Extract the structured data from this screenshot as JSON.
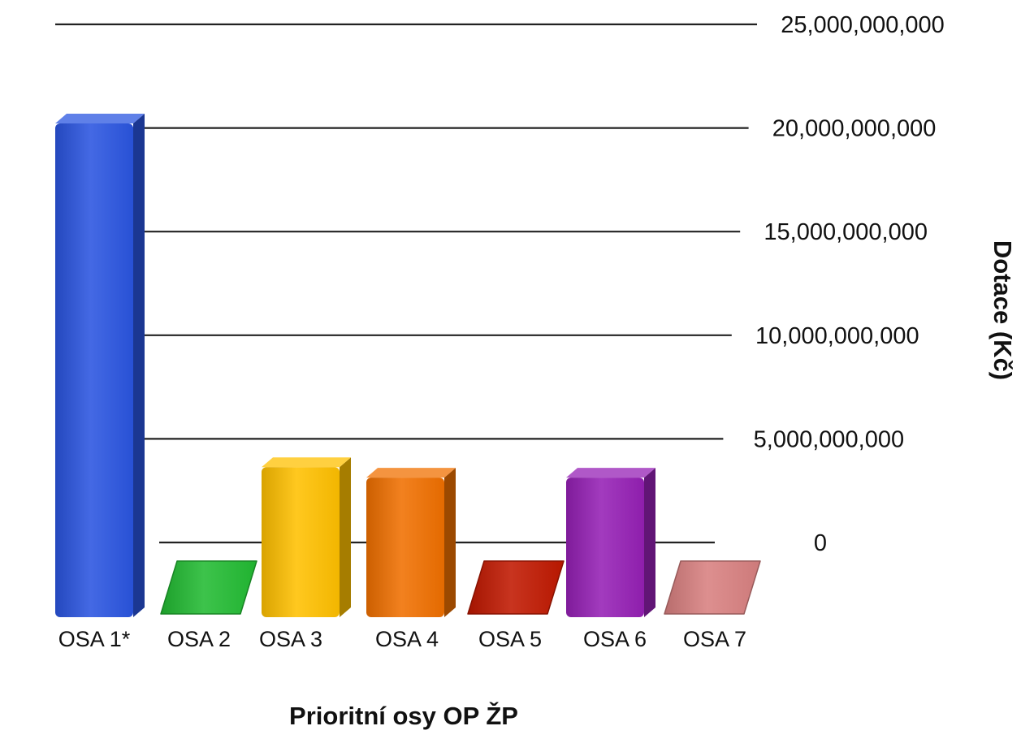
{
  "chart_data": {
    "type": "bar",
    "xlabel": "Prioritní osy OP ŽP",
    "ylabel": "Dotace (Kč)",
    "ylim": [
      0,
      25000000000
    ],
    "y_ticks": [
      0,
      5000000000,
      10000000000,
      15000000000,
      20000000000,
      25000000000
    ],
    "y_tick_labels": [
      "0",
      "5,000,000,000",
      "10,000,000,000",
      "15,000,000,000",
      "20,000,000,000",
      "25,000,000,000"
    ],
    "categories": [
      "OSA 1*",
      "OSA 2",
      "OSA 3",
      "OSA 4",
      "OSA 5",
      "OSA 6",
      "OSA 7"
    ],
    "values": [
      21300000000,
      80000000,
      5000000000,
      4500000000,
      80000000,
      4500000000,
      80000000
    ],
    "colors": [
      "#2a55e0",
      "#22bb33",
      "#ffc000",
      "#f07000",
      "#c01800",
      "#9520b5",
      "#d88080"
    ],
    "grid": true,
    "style": "3d-bars",
    "y_axis_side": "right"
  }
}
